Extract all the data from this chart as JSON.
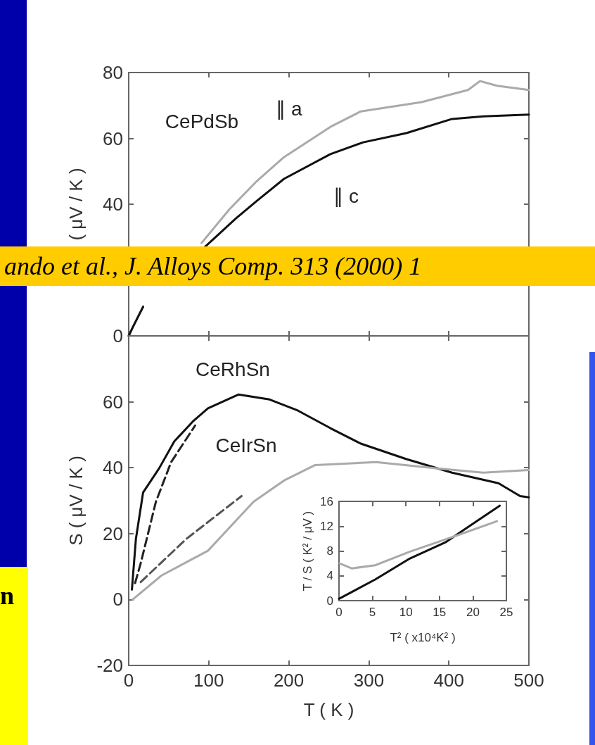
{
  "chart_data": [
    {
      "type": "line",
      "ylabel": "( μV / K )",
      "xlim": [
        0,
        500
      ],
      "xticks": [
        0,
        100,
        200,
        300,
        400,
        500
      ],
      "ylim": [
        0,
        80
      ],
      "yticks": [
        0,
        {
          "value": 20,
          "label": null
        },
        40,
        60,
        80
      ],
      "tick_labels": "y",
      "marker": "none",
      "annotations": [
        "ando et al., J. Alloys Comp. 313 (2000) 1",
        "CePdSb",
        "∥ a",
        "∥ c"
      ],
      "series": [
        {
          "color": "#aaaaaa",
          "x": [
            0,
            5,
            10,
            18,
            50,
            91,
            126,
            160,
            194,
            252,
            290,
            366,
            424,
            439,
            460,
            500
          ],
          "values": [
            0,
            2.5,
            5,
            9,
            null,
            28.2,
            38.5,
            47,
            54.3,
            63.5,
            68.2,
            71,
            74.7,
            77.4,
            76,
            74.7
          ]
        },
        {
          "color": "#111111",
          "x": [
            0,
            5,
            10,
            18,
            50,
            95,
            134,
            160,
            194,
            252,
            293,
            347,
            404,
            443,
            500
          ],
          "values": [
            0,
            2.6,
            5,
            8.8,
            null,
            27,
            35.7,
            41,
            47.7,
            55.2,
            58.8,
            61.6,
            65.9,
            66.7,
            67.2
          ]
        }
      ]
    },
    {
      "type": "line",
      "xlabel": "T ( K )",
      "ylabel": "S ( μV / K )",
      "xlim": [
        0,
        500
      ],
      "xticks": [
        0,
        100,
        200,
        300,
        400,
        500
      ],
      "ylim": [
        -20,
        80
      ],
      "yticks": [
        -20,
        0,
        20,
        40,
        60,
        {
          "value": 80,
          "label": null
        }
      ],
      "marker": "none",
      "annotations": [
        "n",
        "CeRhSn",
        "CeIrSn"
      ],
      "series": [
        {
          "color": "#111111",
          "x": [
            4,
            9,
            18,
            38,
            57,
            80,
            99,
            137,
            176,
            210,
            252,
            290,
            347,
            404,
            462,
            489,
            500
          ],
          "values": [
            3,
            18.4,
            32.5,
            39.8,
            48,
            54,
            58,
            62.2,
            60.7,
            57.5,
            52,
            47.3,
            42.6,
            38.5,
            35.3,
            31.4,
            31
          ]
        },
        {
          "color": "#222222",
          "line_style": "dashed",
          "x": [
            8,
            15,
            34,
            53,
            83
          ],
          "values": [
            5,
            11,
            29.7,
            41.7,
            52.8
          ]
        },
        {
          "color": "#aaaaaa",
          "x": [
            5,
            41,
            99,
            156,
            194,
            233,
            309,
            386,
            443,
            500
          ],
          "values": [
            0,
            7.3,
            14.8,
            29.7,
            36.1,
            40.8,
            41.7,
            39.8,
            38.5,
            39.3
          ]
        },
        {
          "color": "#555555",
          "line_style": "dashed",
          "x": [
            15,
            72,
            141
          ],
          "values": [
            5.3,
            18.4,
            31.4
          ]
        }
      ]
    },
    {
      "type": "line",
      "xlabel": "T² ( x10⁴K² )",
      "ylabel": "T / S ( K² / μV )",
      "xlim": [
        0,
        25
      ],
      "xticks": [
        0,
        5,
        10,
        15,
        20,
        25
      ],
      "ylim": [
        0,
        16
      ],
      "yticks": [
        0,
        4,
        8,
        12,
        16
      ],
      "marker": "none",
      "series": [
        {
          "color": "#111111",
          "x": [
            0,
            5.4,
            10.6,
            15.9,
            21.1,
            24
          ],
          "values": [
            0.3,
            3.4,
            6.8,
            9.4,
            13.2,
            15.3
          ]
        },
        {
          "color": "#aaaaaa",
          "x": [
            0.1,
            1.9,
            5.4,
            10.6,
            17.6,
            23.6
          ],
          "values": [
            6,
            5.2,
            5.7,
            7.9,
            10.5,
            12.8
          ]
        }
      ]
    }
  ]
}
